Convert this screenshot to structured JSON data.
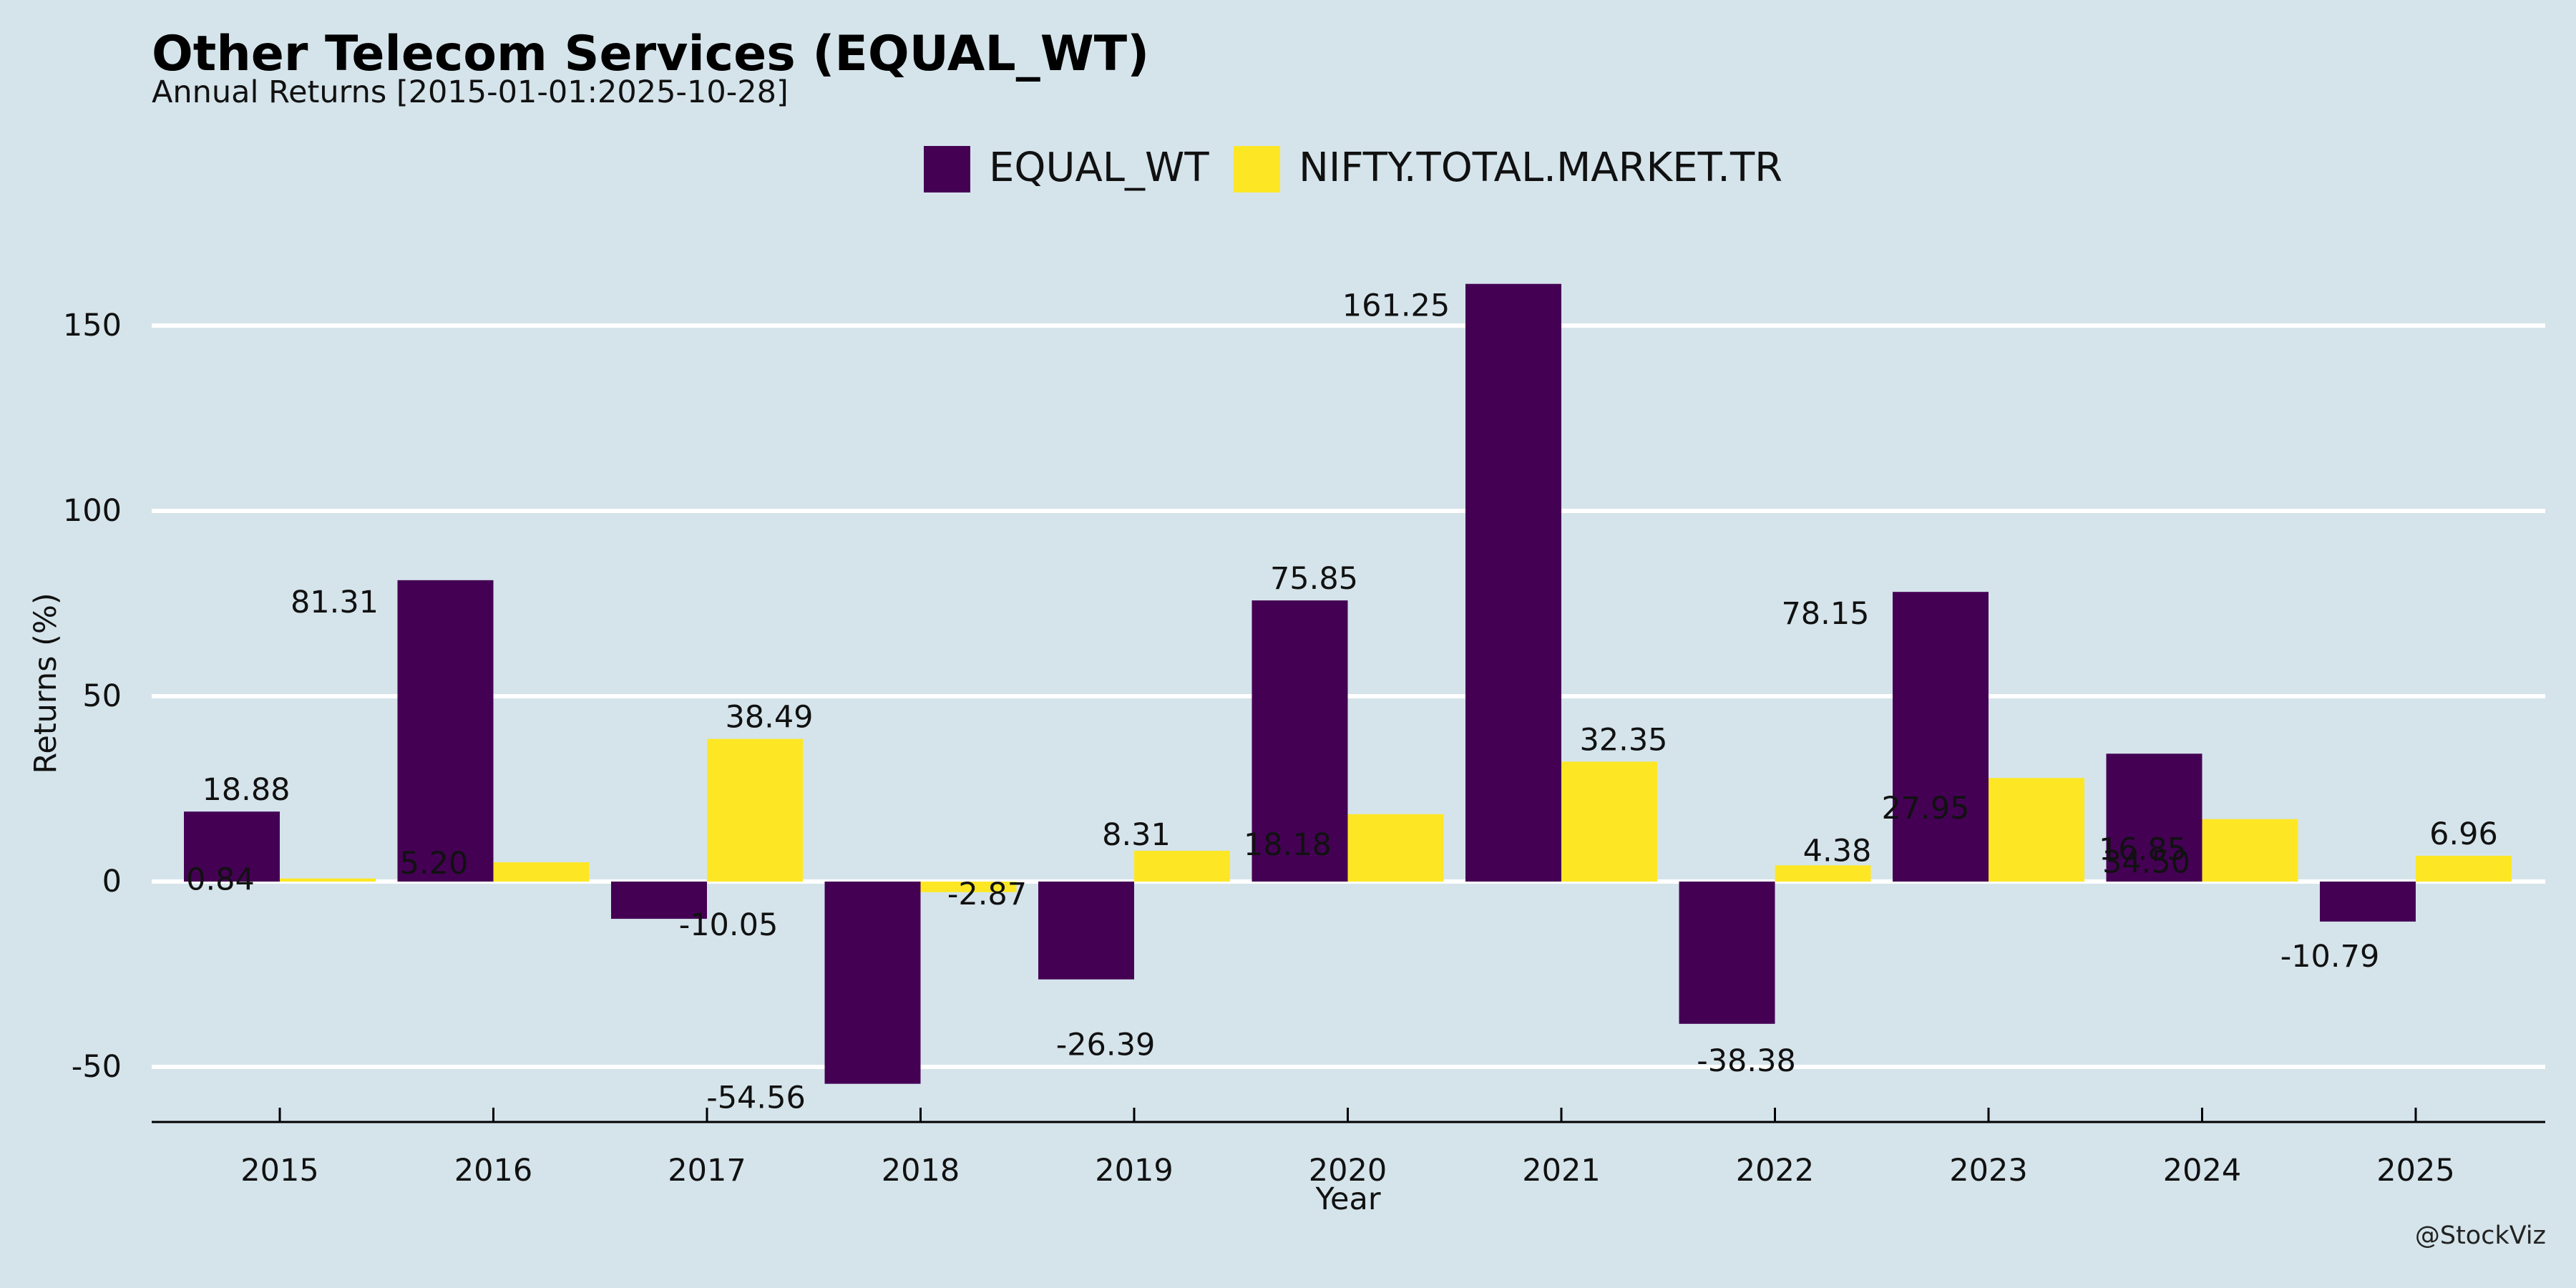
{
  "title": "Other Telecom Services (EQUAL_WT)",
  "subtitle": "Annual Returns [2015-01-01:2025-10-28]",
  "watermark": "@StockViz",
  "colors": {
    "background": "#d5e4eb",
    "grid": "#ffffff",
    "equal_wt": "#440154",
    "nifty": "#fde725"
  },
  "chart_data": {
    "type": "bar",
    "title": "Other Telecom Services (EQUAL_WT)",
    "subtitle": "Annual Returns [2015-01-01:2025-10-28]",
    "xlabel": "Year",
    "ylabel": "Returns (%)",
    "ylim": [
      -65,
      175
    ],
    "yticks": [
      -50,
      0,
      50,
      100,
      150
    ],
    "grid": true,
    "legend_position": "top-center",
    "categories": [
      "2015",
      "2016",
      "2017",
      "2018",
      "2019",
      "2020",
      "2021",
      "2022",
      "2023",
      "2024",
      "2025"
    ],
    "series": [
      {
        "name": "EQUAL_WT",
        "color": "#440154",
        "values": [
          18.88,
          81.31,
          -10.05,
          -54.56,
          -26.39,
          75.85,
          161.25,
          -38.38,
          78.15,
          34.5,
          -10.79
        ],
        "labels": [
          "18.88",
          "81.31",
          "-10.05",
          "-54.56",
          "-26.39",
          "75.85",
          "161.25",
          "-38.38",
          "78.15",
          "34.50",
          "-10.79"
        ]
      },
      {
        "name": "NIFTY.TOTAL.MARKET.TR",
        "color": "#fde725",
        "values": [
          0.84,
          5.2,
          38.49,
          -2.87,
          8.31,
          18.18,
          32.35,
          4.38,
          27.95,
          16.85,
          6.96
        ],
        "labels": [
          "0.84",
          "5.20",
          "38.49",
          "-2.87",
          "8.31",
          "18.18",
          "32.35",
          "4.38",
          "27.95",
          "16.85",
          "6.96"
        ]
      }
    ]
  }
}
